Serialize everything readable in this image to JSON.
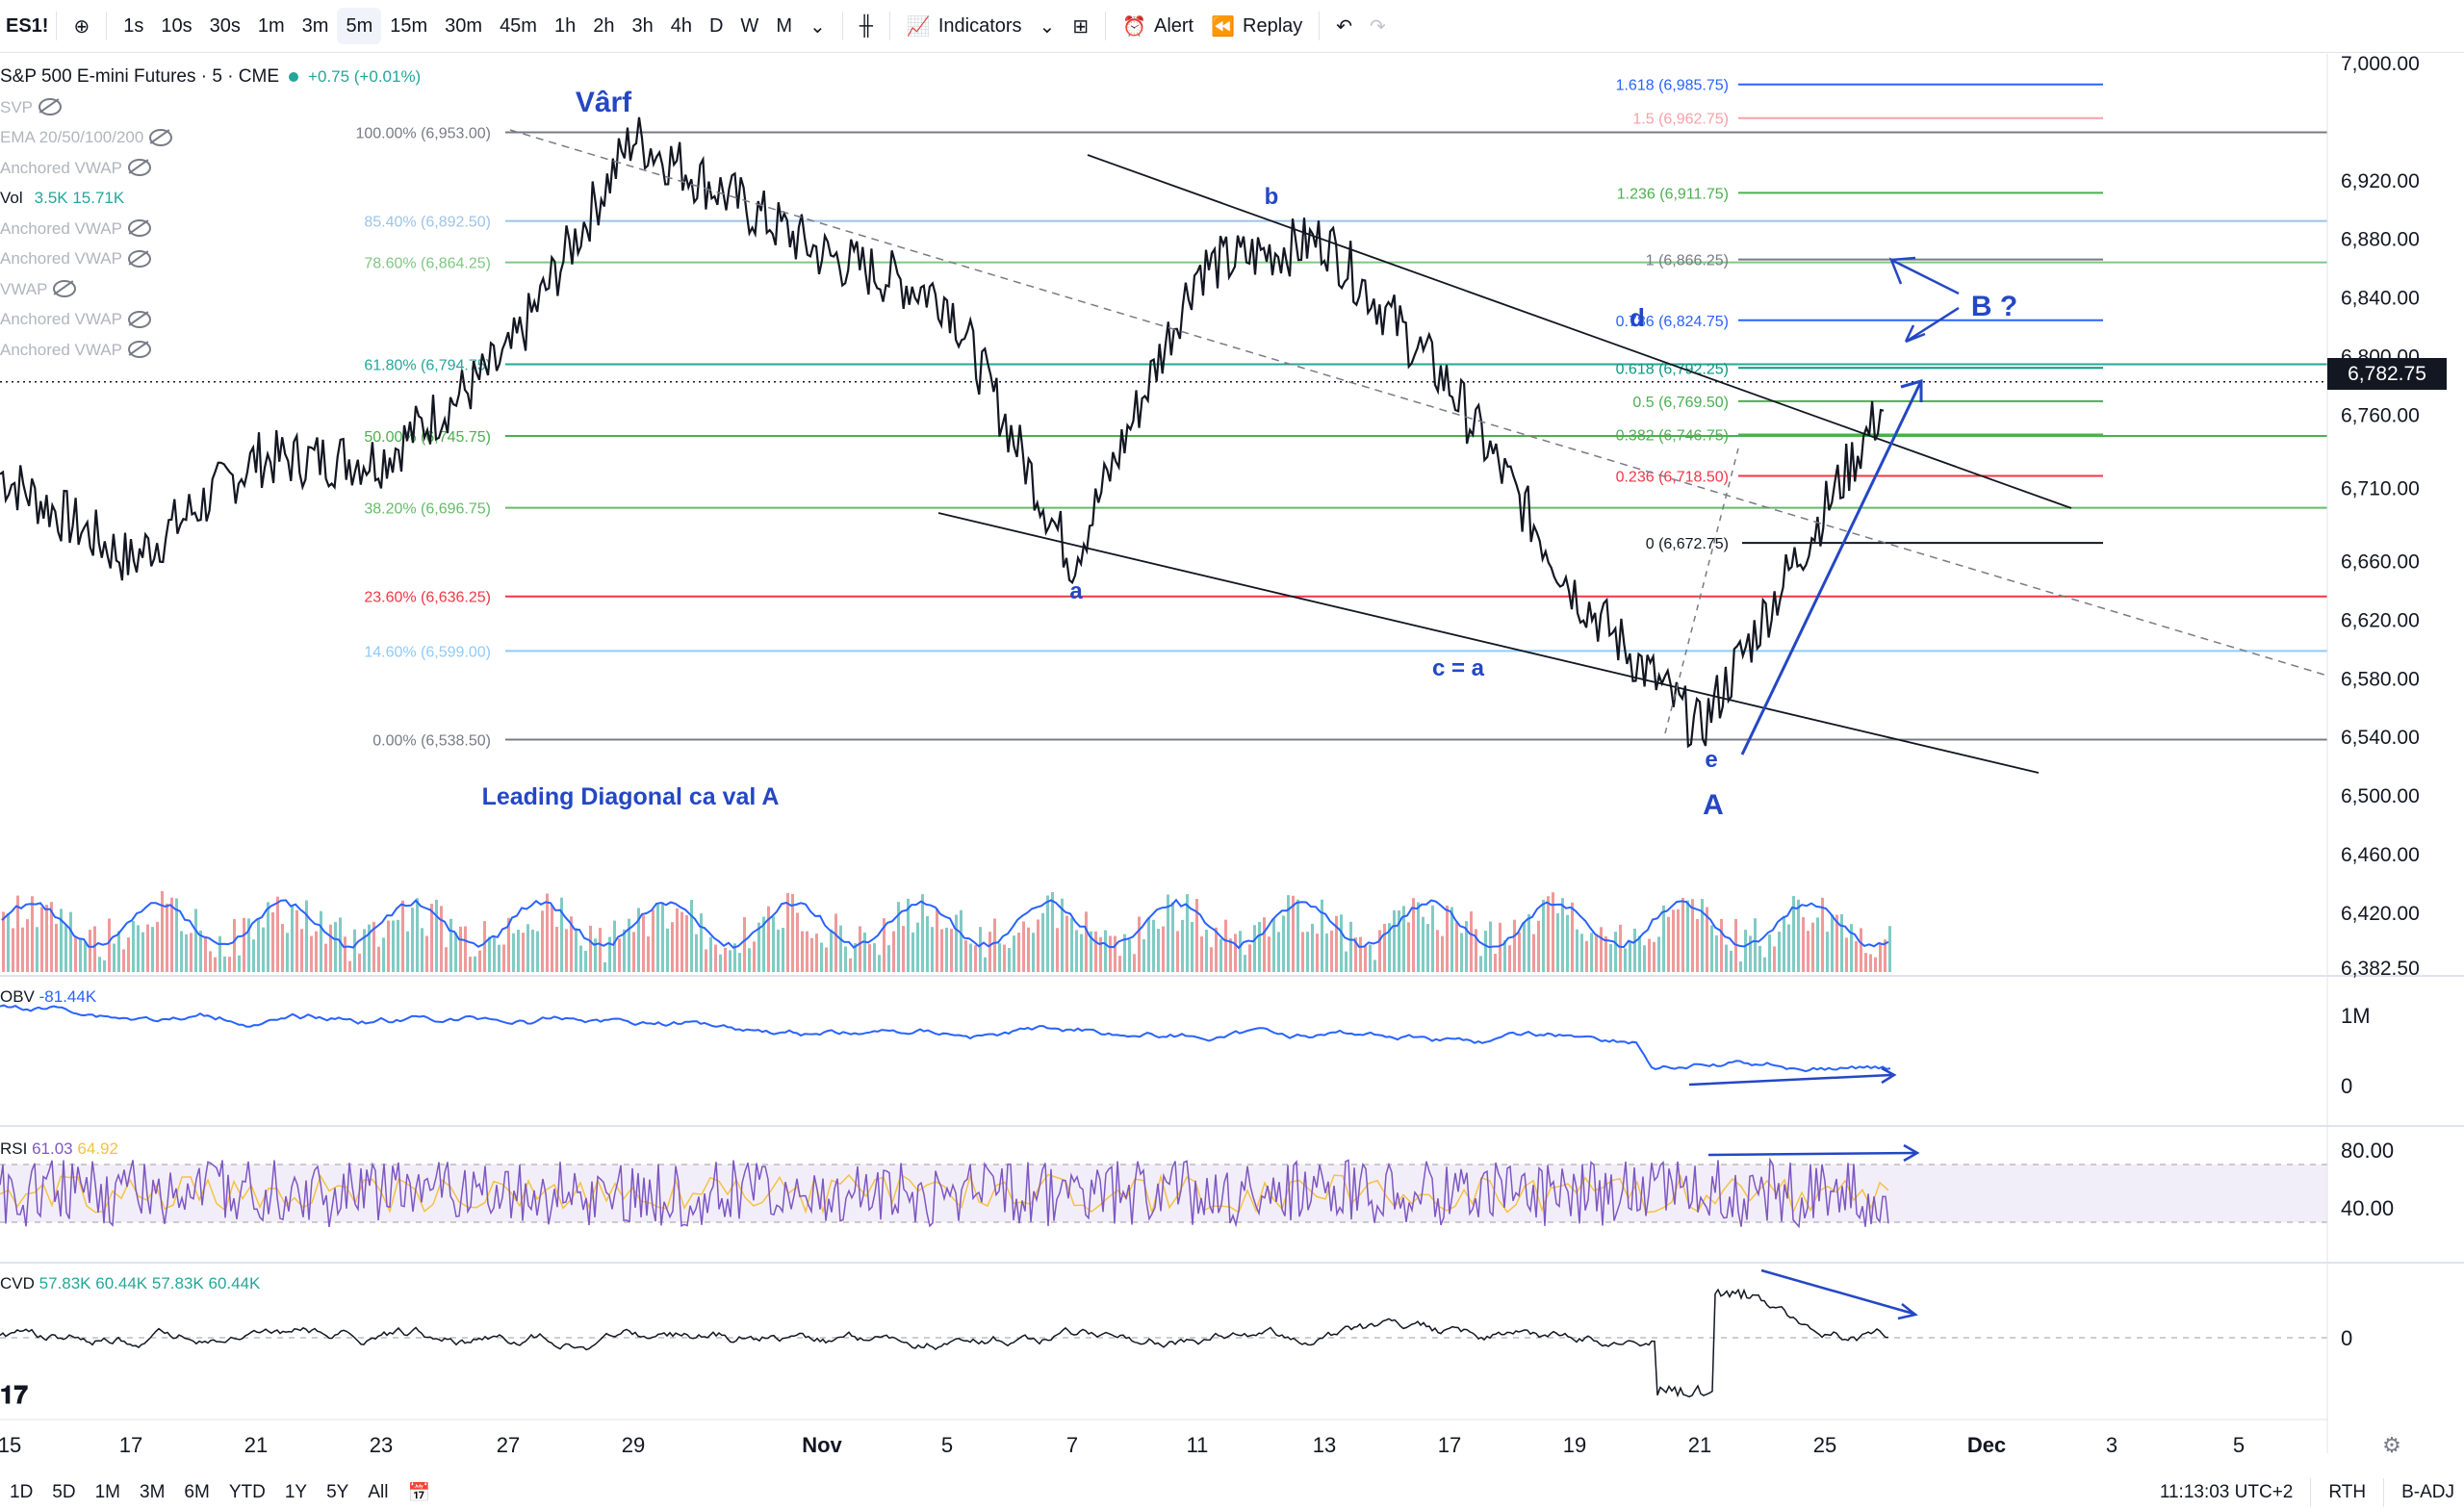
{
  "toolbar": {
    "symbol": "ES1!",
    "intervals": [
      "1s",
      "10s",
      "30s",
      "1m",
      "3m",
      "5m",
      "15m",
      "30m",
      "45m",
      "1h",
      "2h",
      "3h",
      "4h",
      "D",
      "W",
      "M"
    ],
    "active_interval": "5m",
    "indicators_label": "Indicators",
    "alert_label": "Alert",
    "replay_label": "Replay"
  },
  "legend": {
    "title": "S&P 500 E-mini Futures · 5 · CME",
    "change": "+0.75 (+0.01%)",
    "change_color": "#26a69a",
    "studies": [
      "SVP",
      "EMA 20/50/100/200",
      "Anchored VWAP"
    ],
    "vol_label": "Vol",
    "vol_values": "3.5K  15.71K",
    "studies2": [
      "Anchored VWAP",
      "Anchored VWAP",
      "VWAP",
      "Anchored VWAP",
      "Anchored VWAP"
    ]
  },
  "annotations": {
    "peak": "Vârf",
    "wave_a": "a",
    "wave_b": "b",
    "wave_c": "c = a",
    "wave_d": "d",
    "wave_e": "e",
    "wave_A": "A",
    "wave_B": "B ?",
    "caption": "Leading Diagonal ca val A"
  },
  "fib_left": [
    {
      "label": "100.00% (6,953.00)",
      "color": "#787b86"
    },
    {
      "label": "85.40% (6,892.50)",
      "color": "#9ec3e6"
    },
    {
      "label": "78.60% (6,864.25)",
      "color": "#81c784"
    },
    {
      "label": "61.80% (6,794.75)",
      "color": "#26a69a"
    },
    {
      "label": "50.00% (6,745.75)",
      "color": "#4caf50"
    },
    {
      "label": "38.20% (6,696.75)",
      "color": "#66bb6a"
    },
    {
      "label": "23.60% (6,636.25)",
      "color": "#f23645"
    },
    {
      "label": "14.60% (6,599.00)",
      "color": "#90caf9"
    },
    {
      "label": "0.00% (6,538.50)",
      "color": "#787b86"
    }
  ],
  "fib_right": [
    {
      "label": "1.618 (6,985.75)",
      "color": "#2962ff"
    },
    {
      "label": "1.5 (6,962.75)",
      "color": "#f7a0a8"
    },
    {
      "label": "1.236 (6,911.75)",
      "color": "#4caf50"
    },
    {
      "label": "1 (6,866.25)",
      "color": "#787b86"
    },
    {
      "label": "0.786 (6,824.75)",
      "color": "#2962ff"
    },
    {
      "label": "0.618 (6,792.25)",
      "color": "#089981"
    },
    {
      "label": "0.5 (6,769.50)",
      "color": "#4caf50"
    },
    {
      "label": "0.382 (6,746.75)",
      "color": "#4caf50"
    },
    {
      "label": "0.236 (6,718.50)",
      "color": "#f23645"
    },
    {
      "label": "0 (6,672.75)",
      "color": "#131722"
    }
  ],
  "price_axis": [
    "7,000.00",
    "6,920.00",
    "6,880.00",
    "6,840.00",
    "6,800.00",
    "6,760.00",
    "6,710.00",
    "6,660.00",
    "6,620.00",
    "6,580.00",
    "6,540.00",
    "6,500.00",
    "6,460.00",
    "6,420.00",
    "6,382.50"
  ],
  "last_price": "6,782.75",
  "indicators": {
    "obv_label": "OBV",
    "obv_value": "-81.44K",
    "obv_axis": [
      "1M",
      "0"
    ],
    "rsi_label": "RSI",
    "rsi_values": [
      "61.03",
      "64.92"
    ],
    "rsi_axis": [
      "80.00",
      "40.00"
    ],
    "cvd_label": "CVD",
    "cvd_values": [
      "57.83K",
      "60.44K",
      "57.83K",
      "60.44K"
    ],
    "cvd_axis": [
      "0"
    ]
  },
  "time_axis": [
    "15",
    "17",
    "21",
    "23",
    "27",
    "29",
    "Nov",
    "5",
    "7",
    "11",
    "13",
    "17",
    "19",
    "21",
    "25",
    "Dec",
    "3",
    "5"
  ],
  "bottombar": {
    "ranges": [
      "1D",
      "5D",
      "1M",
      "3M",
      "6M",
      "YTD",
      "1Y",
      "5Y",
      "All"
    ],
    "clock": "11:13:03 UTC+2",
    "session": "RTH",
    "adj": "B-ADJ"
  },
  "chart_data": {
    "type": "line",
    "title": "S&P 500 E-mini Futures · 5 · CME",
    "xlabel": "",
    "ylabel": "",
    "ylim": [
      6382.5,
      7000
    ],
    "x": [
      "15",
      "17",
      "21",
      "23",
      "27",
      "29",
      "Nov",
      "5",
      "7",
      "11",
      "13",
      "17",
      "19",
      "21",
      "25"
    ],
    "series": [
      {
        "values": [
          6720,
          6660,
          6730,
          6730,
          6800,
          6950,
          6870,
          6840,
          6660,
          6860,
          6880,
          6780,
          6640,
          6545,
          6770
        ]
      }
    ]
  }
}
